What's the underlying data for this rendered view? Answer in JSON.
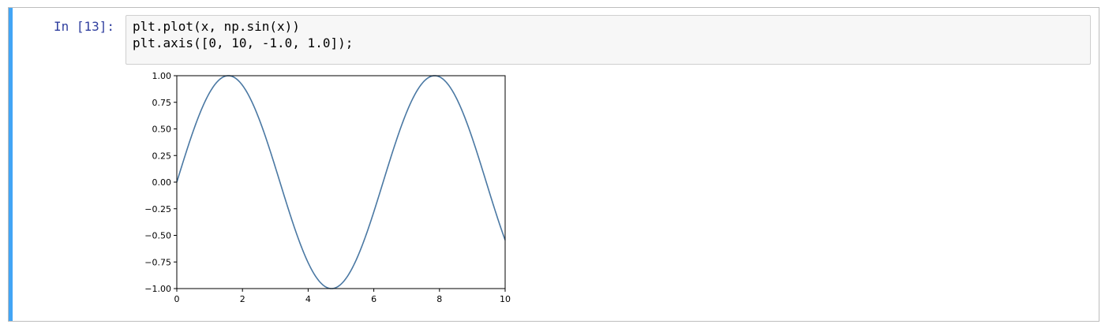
{
  "cell": {
    "prompt": "In [13]:",
    "code_lines": [
      "plt.plot(x, np.sin(x))",
      "plt.axis([0, 10, -1.0, 1.0]);"
    ]
  },
  "colors": {
    "cell_bar": "#42a5f5",
    "prompt": "#303f9f",
    "line": "#4a78a3"
  },
  "chart_data": {
    "type": "line",
    "function": "sin(x)",
    "xlim": [
      0,
      10
    ],
    "ylim": [
      -1.0,
      1.0
    ],
    "x_ticks": [
      0,
      2,
      4,
      6,
      8,
      10
    ],
    "x_tick_labels": [
      "0",
      "2",
      "4",
      "6",
      "8",
      "10"
    ],
    "y_ticks": [
      -1.0,
      -0.75,
      -0.5,
      -0.25,
      0.0,
      0.25,
      0.5,
      0.75,
      1.0
    ],
    "y_tick_labels": [
      "−1.00",
      "−0.75",
      "−0.50",
      "−0.25",
      "0.00",
      "0.25",
      "0.50",
      "0.75",
      "1.00"
    ],
    "series": [
      {
        "x": [
          0,
          0.5,
          1.0,
          1.5708,
          2.0,
          2.5,
          3.0,
          3.5,
          4.0,
          4.7124,
          5.0,
          5.5,
          6.0,
          6.5,
          7.0,
          7.854,
          8.5,
          9.0,
          9.5,
          10.0
        ],
        "y": [
          0.0,
          0.479,
          0.841,
          1.0,
          0.909,
          0.598,
          0.141,
          -0.351,
          -0.757,
          -1.0,
          -0.959,
          -0.706,
          -0.279,
          0.215,
          0.657,
          1.0,
          0.798,
          0.412,
          -0.075,
          -0.544
        ]
      }
    ],
    "grid": false,
    "legend": false
  }
}
